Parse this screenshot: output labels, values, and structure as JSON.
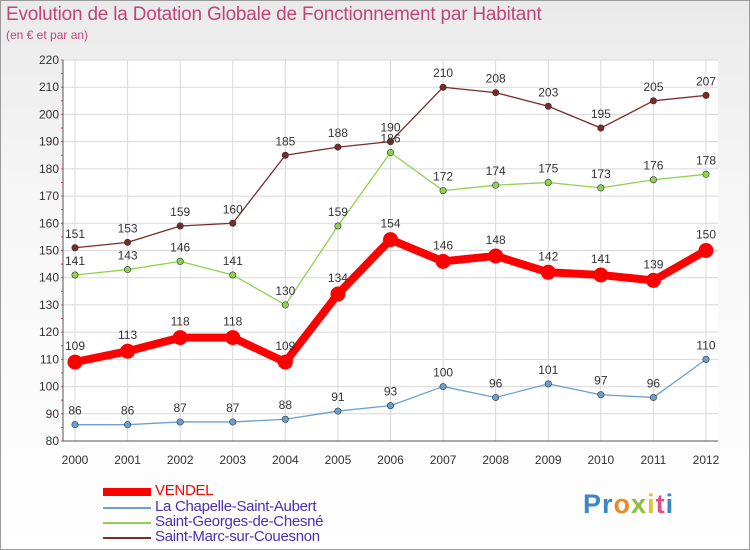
{
  "header": {
    "title": "Evolution de la Dotation Globale de Fonctionnement par Habitant",
    "subtitle": "(en € et par an)"
  },
  "chart_data": {
    "type": "line",
    "title": "Evolution de la Dotation Globale de Fonctionnement par Habitant",
    "subtitle": "(en € et par an)",
    "xlabel": "",
    "ylabel": "",
    "x": [
      "2000",
      "2001",
      "2002",
      "2003",
      "2004",
      "2005",
      "2006",
      "2007",
      "2008",
      "2009",
      "2010",
      "2011",
      "2012"
    ],
    "ylim": [
      80,
      220
    ],
    "yticks": [
      80,
      90,
      100,
      110,
      120,
      130,
      140,
      150,
      160,
      170,
      180,
      190,
      200,
      210,
      220
    ],
    "grid": true,
    "legend_position": "bottom-left",
    "series": [
      {
        "name": "VENDEL",
        "color": "#ff0000",
        "values": [
          109,
          113,
          118,
          118,
          109,
          134,
          154,
          146,
          148,
          142,
          141,
          139,
          150
        ],
        "labels": [
          "109",
          "113",
          "118",
          "118",
          "109",
          "134",
          "154",
          "146",
          "148",
          "142",
          "141",
          "139",
          "150"
        ]
      },
      {
        "name": "La Chapelle-Saint-Aubert",
        "color": "#6aa0cf",
        "values": [
          86,
          86,
          87,
          87,
          88,
          91,
          93,
          100,
          96,
          101,
          97,
          96,
          110
        ],
        "labels": [
          "86",
          "86",
          "87",
          "87",
          "88",
          "91",
          "93",
          "100",
          "96",
          "101",
          "97",
          "96",
          "110"
        ]
      },
      {
        "name": "Saint-Georges-de-Chesné",
        "color": "#8fd24f",
        "values": [
          141,
          143,
          146,
          141,
          130,
          159,
          186,
          172,
          174,
          175,
          173,
          176,
          178
        ],
        "labels": [
          "141",
          "143",
          "146",
          "141",
          "130",
          "159",
          "186",
          "172",
          "174",
          "175",
          "173",
          "176",
          "178"
        ]
      },
      {
        "name": "Saint-Marc-sur-Couesnon",
        "color": "#7a2a2a",
        "values": [
          151,
          153,
          159,
          160,
          185,
          188,
          190,
          210,
          208,
          203,
          195,
          205,
          207
        ],
        "labels": [
          "151",
          "153",
          "159",
          "160",
          "185",
          "188",
          "190",
          "210",
          "208",
          "203",
          "195",
          "205",
          "207"
        ]
      }
    ]
  },
  "logo": {
    "text": "Proxiti",
    "parts": [
      "P",
      "r",
      "o",
      "x",
      "i",
      "t",
      "i"
    ]
  }
}
